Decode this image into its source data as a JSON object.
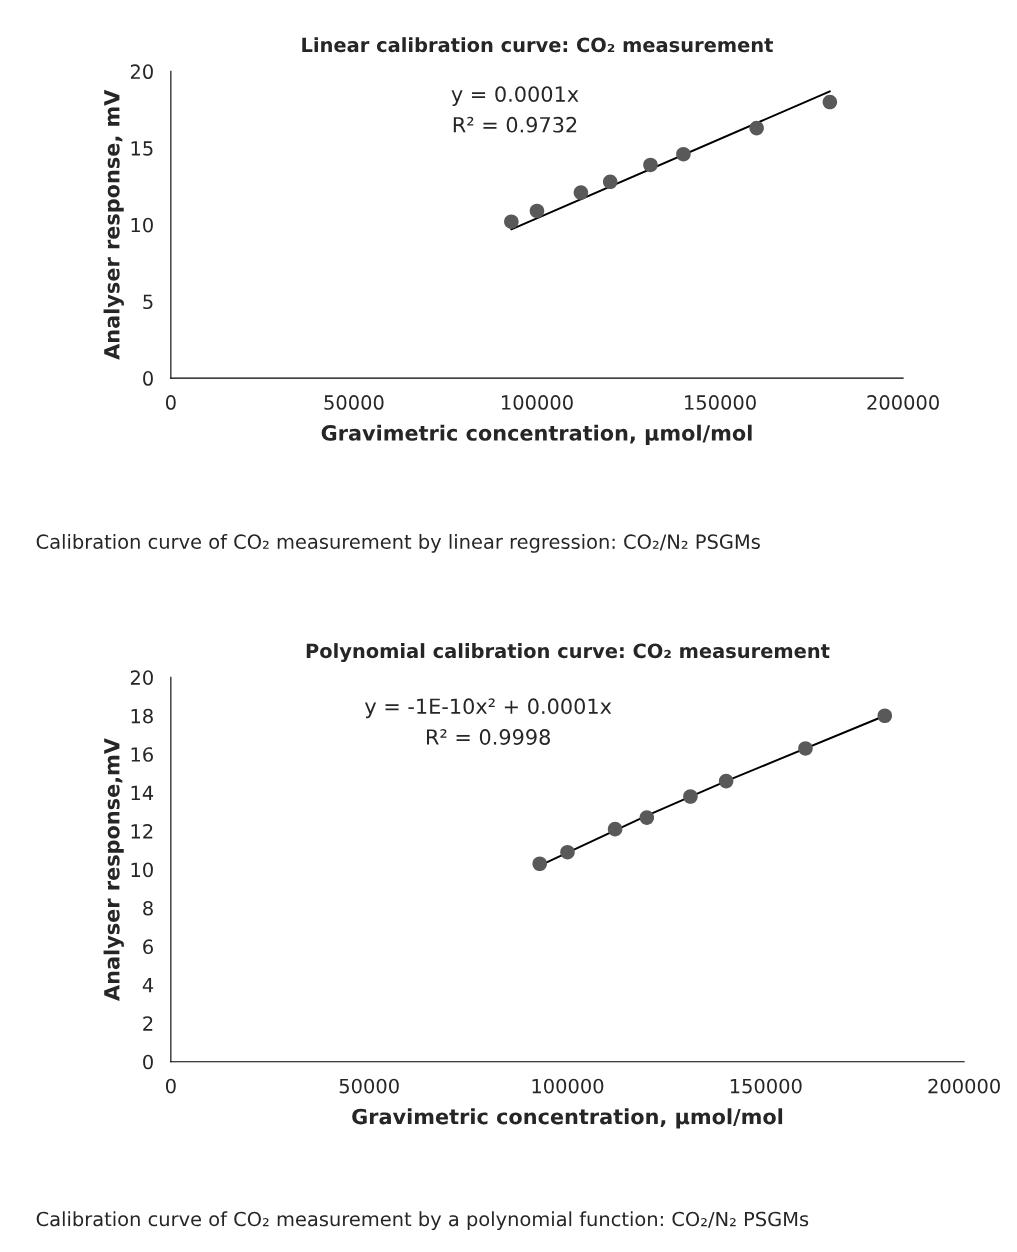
{
  "chart_data": [
    {
      "type": "scatter",
      "title": "Linear calibration curve: CO₂ measurement",
      "xlabel": "Gravimetric concentration, µmol/mol",
      "ylabel": "Analyser response, mV",
      "annotations": [
        "y = 0.0001x",
        "R² = 0.9732",
        "Calibration curve of CO₂ measurement by linear regression: CO₂/N₂ PSGMs"
      ],
      "series": [
        {
          "color": "#595959",
          "marker": "circle",
          "x": [
            93000,
            100000,
            112000,
            120000,
            131000,
            140000,
            160000,
            180000
          ],
          "values": [
            10.2,
            10.9,
            12.1,
            12.8,
            13.9,
            14.6,
            16.3,
            18.0
          ]
        },
        {
          "type": "line",
          "color": "#000000",
          "marker": "none",
          "x": [
            93000,
            180000
          ],
          "values": [
            9.7,
            18.7
          ]
        }
      ],
      "xlim": [
        0,
        200000
      ],
      "xticks": [
        0,
        50000,
        100000,
        150000,
        200000
      ],
      "ylim": [
        0,
        20
      ],
      "yticks": [
        0,
        5,
        10,
        15,
        20
      ],
      "grid": false
    },
    {
      "type": "scatter",
      "title": "Polynomial calibration curve: CO₂ measurement",
      "xlabel": "Gravimetric concentration, µmol/mol",
      "ylabel": "Analyser response,mV",
      "annotations": [
        "y = -1E-10x² + 0.0001x",
        "R² = 0.9998",
        "Calibration curve of CO₂ measurement by a polynomial function: CO₂/N₂ PSGMs"
      ],
      "series": [
        {
          "color": "#595959",
          "marker": "circle",
          "x": [
            93000,
            100000,
            112000,
            120000,
            131000,
            140000,
            160000,
            180000
          ],
          "values": [
            10.3,
            10.9,
            12.1,
            12.7,
            13.8,
            14.6,
            16.3,
            18.0
          ]
        },
        {
          "type": "line",
          "color": "#000000",
          "marker": "none",
          "x": [
            93000,
            120000,
            140000,
            180000
          ],
          "values": [
            10.2,
            12.8,
            14.6,
            18.0
          ]
        }
      ],
      "xlim": [
        0,
        200000
      ],
      "xticks": [
        0,
        50000,
        100000,
        150000,
        200000
      ],
      "ylim": [
        0,
        20
      ],
      "yticks": [
        0,
        2,
        4,
        6,
        8,
        10,
        12,
        14,
        16,
        18,
        20
      ],
      "grid": false
    }
  ]
}
